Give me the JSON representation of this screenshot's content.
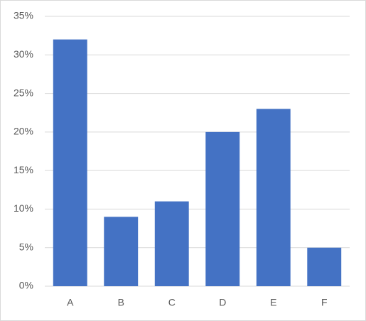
{
  "chart_data": {
    "type": "bar",
    "categories": [
      "A",
      "B",
      "C",
      "D",
      "E",
      "F"
    ],
    "values": [
      32,
      9,
      11,
      20,
      23,
      5
    ],
    "color": "#4472c4",
    "ylim": [
      0,
      35
    ],
    "yticks": [
      {
        "value": 0,
        "label": "0%"
      },
      {
        "value": 5,
        "label": "5%"
      },
      {
        "value": 10,
        "label": "10%"
      },
      {
        "value": 15,
        "label": "15%"
      },
      {
        "value": 20,
        "label": "20%"
      },
      {
        "value": 25,
        "label": "25%"
      },
      {
        "value": 30,
        "label": "30%"
      },
      {
        "value": 35,
        "label": "35%"
      }
    ],
    "grid": true
  }
}
